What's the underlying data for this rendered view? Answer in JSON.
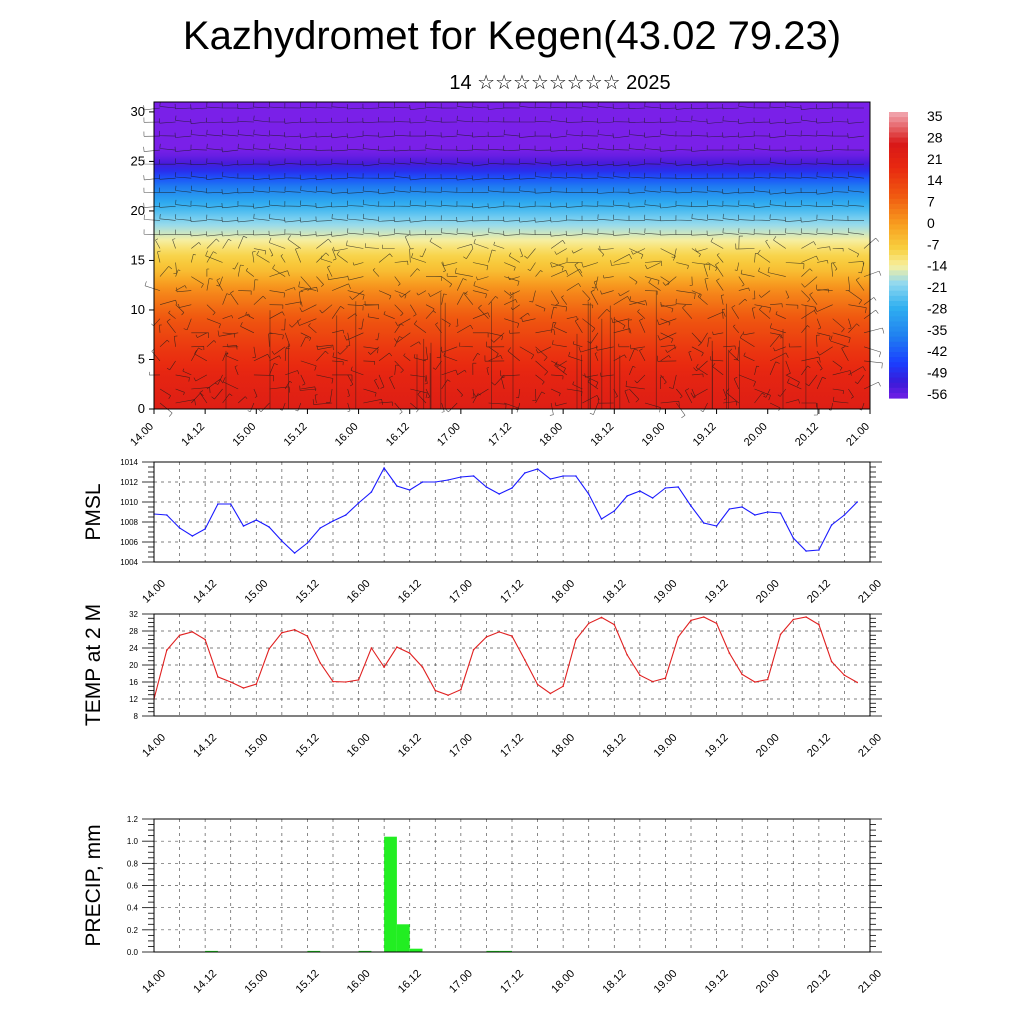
{
  "title": "Kazhydromet for Kegen(43.02 79.23)",
  "subtitle": "14 ☆☆☆☆☆☆☆☆ 2025",
  "x_tick_labels": [
    "14.00",
    "14.12",
    "15.00",
    "15.12",
    "16.00",
    "16.12",
    "17.00",
    "17.12",
    "18.00",
    "18.12",
    "19.00",
    "19.12",
    "20.00",
    "20.12",
    "21.00"
  ],
  "colors": {
    "pmsl_line": "#1a1aff",
    "temp_line": "#e02020",
    "precip_bar": "#22ee22",
    "grid": "#555555"
  },
  "chart_data": [
    {
      "type": "heatmap",
      "name": "Temperature cross-section with wind barbs",
      "xlabel": "",
      "ylabel": "",
      "yticks": [
        0,
        5,
        10,
        15,
        20,
        25,
        30
      ],
      "ylim": [
        0,
        31
      ],
      "colorbar": {
        "labels": [
          "35",
          "28",
          "21",
          "14",
          "7",
          "0",
          "-7",
          "-14",
          "-21",
          "-28",
          "-35",
          "-42",
          "-49",
          "-56"
        ],
        "range": [
          -60,
          38
        ]
      },
      "profile": {
        "levels": [
          0,
          3,
          6,
          9,
          12,
          14,
          16,
          17,
          19,
          21,
          23,
          24.5,
          26,
          28,
          31
        ],
        "temps": [
          25,
          22,
          17,
          11,
          3,
          -5,
          -10,
          -14,
          -21,
          -30,
          -42,
          -54,
          -60,
          -60,
          -60
        ]
      }
    },
    {
      "type": "line",
      "name": "PMSL",
      "ylabel": "PMSL",
      "ylim": [
        1004,
        1014
      ],
      "yticks": [
        1004,
        1006,
        1008,
        1010,
        1012,
        1014
      ],
      "xlim": [
        0,
        168
      ],
      "x": [
        0,
        3,
        6,
        9,
        12,
        15,
        18,
        21,
        24,
        27,
        30,
        33,
        36,
        39,
        42,
        45,
        48,
        51,
        54,
        57,
        60,
        63,
        66,
        69,
        72,
        75,
        78,
        81,
        84,
        87,
        90,
        93,
        96,
        99,
        102,
        105,
        108,
        111,
        114,
        117,
        120,
        123,
        126,
        129,
        132,
        135,
        138,
        141,
        144,
        147,
        150,
        153,
        156,
        159,
        162,
        165
      ],
      "values": [
        1008.8,
        1008.7,
        1007.4,
        1006.6,
        1007.3,
        1009.8,
        1009.8,
        1007.6,
        1008.2,
        1007.5,
        1006.1,
        1004.9,
        1005.9,
        1007.4,
        1008.1,
        1008.7,
        1009.9,
        1011.0,
        1013.4,
        1011.6,
        1011.2,
        1012.0,
        1012.0,
        1012.2,
        1012.5,
        1012.6,
        1011.5,
        1010.8,
        1011.4,
        1012.9,
        1013.3,
        1012.3,
        1012.6,
        1012.6,
        1010.8,
        1008.3,
        1009.1,
        1010.6,
        1011.1,
        1010.4,
        1011.4,
        1011.5,
        1009.6,
        1007.9,
        1007.6,
        1009.3,
        1009.5,
        1008.7,
        1009.0,
        1008.9,
        1006.4,
        1005.1,
        1005.2,
        1007.7,
        1008.7,
        1010.0
      ]
    },
    {
      "type": "line",
      "name": "TEMP at 2 M",
      "ylabel": "TEMP at 2 M",
      "ylim": [
        8,
        32
      ],
      "yticks": [
        8,
        12,
        16,
        20,
        24,
        28,
        32
      ],
      "xlim": [
        0,
        168
      ],
      "x": [
        0,
        3,
        6,
        9,
        12,
        15,
        18,
        21,
        24,
        27,
        30,
        33,
        36,
        39,
        42,
        45,
        48,
        51,
        54,
        57,
        60,
        63,
        66,
        69,
        72,
        75,
        78,
        81,
        84,
        87,
        90,
        93,
        96,
        99,
        102,
        105,
        108,
        111,
        114,
        117,
        120,
        123,
        126,
        129,
        132,
        135,
        138,
        141,
        144,
        147,
        150,
        153,
        156,
        159,
        162,
        165
      ],
      "values": [
        12.0,
        23.5,
        27.0,
        27.8,
        26.0,
        17.2,
        16.0,
        14.6,
        15.5,
        23.8,
        27.6,
        28.3,
        26.8,
        20.5,
        16.1,
        16.0,
        16.5,
        24.0,
        19.5,
        24.2,
        22.8,
        19.5,
        14.0,
        12.9,
        14.2,
        23.6,
        26.6,
        27.8,
        26.8,
        21.2,
        15.4,
        13.3,
        15.0,
        26.0,
        29.8,
        31.2,
        29.5,
        22.4,
        17.6,
        16.1,
        16.9,
        26.6,
        30.5,
        31.3,
        29.8,
        22.8,
        17.8,
        16.0,
        16.6,
        27.2,
        30.7,
        31.3,
        29.5,
        20.8,
        17.6,
        15.9
      ]
    },
    {
      "type": "bar",
      "name": "PRECIP, mm",
      "ylabel": "PRECIP, mm",
      "ylim": [
        0,
        1.2
      ],
      "yticks": [
        0.0,
        0.2,
        0.4,
        0.6,
        0.8,
        1.0,
        1.2
      ],
      "ytick_labels": [
        "0.0",
        "0.2",
        "0.4",
        "0.6",
        "0.8",
        "1.0",
        "1.2"
      ],
      "xlim": [
        0,
        168
      ],
      "x": [
        12,
        36,
        48,
        54,
        57,
        60,
        78,
        81
      ],
      "values": [
        0.01,
        0.01,
        0.01,
        1.04,
        0.25,
        0.03,
        0.01,
        0.01
      ]
    }
  ]
}
